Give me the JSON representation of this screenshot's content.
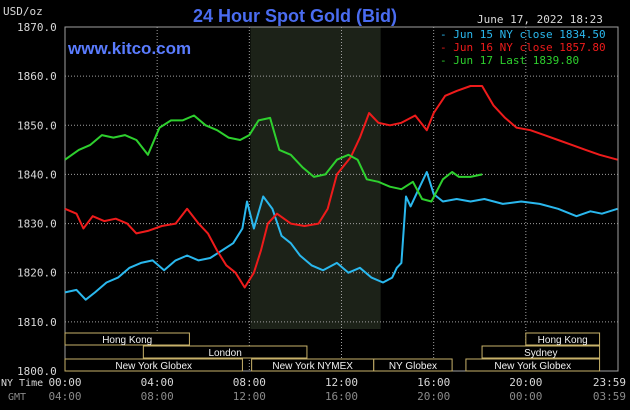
{
  "chart_data": {
    "type": "line",
    "title": "24 Hour Spot Gold (Bid)",
    "ylabel": "USD/oz",
    "watermark": "www.kitco.com",
    "timestamp": "June 17, 2022 18:23",
    "ylim": [
      1800,
      1870
    ],
    "yticks": [
      "1870.0",
      "1860.0",
      "1850.0",
      "1840.0",
      "1830.0",
      "1820.0",
      "1810.0",
      "1800.0"
    ],
    "xlim": [
      0,
      24
    ],
    "xticks": [
      {
        "ny": "00:00",
        "gmt": "04:00"
      },
      {
        "ny": "04:00",
        "gmt": "08:00"
      },
      {
        "ny": "08:00",
        "gmt": "12:00"
      },
      {
        "ny": "12:00",
        "gmt": "16:00"
      },
      {
        "ny": "16:00",
        "gmt": "20:00"
      },
      {
        "ny": "20:00",
        "gmt": "00:00"
      },
      {
        "ny": "23:59",
        "gmt": "03:59"
      }
    ],
    "x_row_labels": {
      "ny": "NY Time",
      "gmt": "GMT"
    },
    "grid": true,
    "legend_position": "top-right",
    "highlight_hours": [
      8.05,
      13.7
    ],
    "colors": {
      "background": "#000000",
      "title": "#4a6cf0",
      "watermark": "#5a7cff",
      "grid": "#a0a0a0",
      "axis_text": "#d8d8d8",
      "highlight": "#1c2218",
      "session_box_fill": "#000000",
      "session_box_border": "#c8b26a",
      "session_text": "#f2f2f2"
    },
    "sessions": {
      "row1": [
        {
          "label": "Hong Kong",
          "start": 0,
          "end": 5.4
        },
        {
          "label": "Hong Kong",
          "start": 20.0,
          "end": 23.2
        }
      ],
      "row2": [
        {
          "label": "London",
          "start": 3.4,
          "end": 10.5
        },
        {
          "label": "Sydney",
          "start": 18.1,
          "end": 23.2
        }
      ],
      "row3": [
        {
          "label": "New York Globex",
          "start": 0,
          "end": 7.7
        },
        {
          "label": "New York NYMEX",
          "start": 8.1,
          "end": 13.4
        },
        {
          "label": "NY Globex",
          "start": 13.4,
          "end": 16.8
        },
        {
          "label": "New York Globex",
          "start": 17.4,
          "end": 23.2
        }
      ]
    },
    "series": [
      {
        "name": "Jun 15 NY close 1834.50",
        "color": "#2ab8ee",
        "points": [
          [
            0,
            1816
          ],
          [
            0.5,
            1816.5
          ],
          [
            0.9,
            1814.5
          ],
          [
            1.3,
            1816
          ],
          [
            1.8,
            1818
          ],
          [
            2.3,
            1819
          ],
          [
            2.8,
            1821
          ],
          [
            3.3,
            1822
          ],
          [
            3.8,
            1822.5
          ],
          [
            4.3,
            1820.5
          ],
          [
            4.8,
            1822.5
          ],
          [
            5.3,
            1823.5
          ],
          [
            5.8,
            1822.5
          ],
          [
            6.3,
            1823
          ],
          [
            6.8,
            1824.5
          ],
          [
            7.3,
            1826
          ],
          [
            7.7,
            1829
          ],
          [
            7.9,
            1834.5
          ],
          [
            8.2,
            1829
          ],
          [
            8.6,
            1835.5
          ],
          [
            9.0,
            1833
          ],
          [
            9.4,
            1827.5
          ],
          [
            9.8,
            1826
          ],
          [
            10.2,
            1823.5
          ],
          [
            10.7,
            1821.5
          ],
          [
            11.2,
            1820.5
          ],
          [
            11.8,
            1822
          ],
          [
            12.3,
            1820
          ],
          [
            12.8,
            1821
          ],
          [
            13.3,
            1819
          ],
          [
            13.8,
            1818
          ],
          [
            14.2,
            1819
          ],
          [
            14.4,
            1821
          ],
          [
            14.6,
            1822
          ],
          [
            14.8,
            1835.5
          ],
          [
            15.0,
            1833.5
          ],
          [
            15.4,
            1837.5
          ],
          [
            15.7,
            1840.5
          ],
          [
            16.0,
            1836
          ],
          [
            16.4,
            1834.5
          ],
          [
            17.0,
            1835
          ],
          [
            17.6,
            1834.5
          ],
          [
            18.2,
            1835
          ],
          [
            19.0,
            1834
          ],
          [
            19.8,
            1834.5
          ],
          [
            20.6,
            1834
          ],
          [
            21.4,
            1833
          ],
          [
            22.2,
            1831.5
          ],
          [
            22.8,
            1832.5
          ],
          [
            23.3,
            1832
          ],
          [
            23.98,
            1833
          ]
        ]
      },
      {
        "name": "Jun 16 NY close 1857.80",
        "color": "#ee1b1b",
        "points": [
          [
            0,
            1833
          ],
          [
            0.5,
            1832
          ],
          [
            0.8,
            1829
          ],
          [
            1.2,
            1831.5
          ],
          [
            1.7,
            1830.5
          ],
          [
            2.2,
            1831
          ],
          [
            2.7,
            1830
          ],
          [
            3.1,
            1828
          ],
          [
            3.6,
            1828.5
          ],
          [
            4.2,
            1829.5
          ],
          [
            4.8,
            1830
          ],
          [
            5.3,
            1833
          ],
          [
            5.8,
            1830
          ],
          [
            6.2,
            1828
          ],
          [
            6.6,
            1824.5
          ],
          [
            7.0,
            1821.5
          ],
          [
            7.4,
            1820
          ],
          [
            7.8,
            1817
          ],
          [
            8.2,
            1820
          ],
          [
            8.5,
            1824.5
          ],
          [
            8.8,
            1830
          ],
          [
            9.2,
            1832
          ],
          [
            9.8,
            1830
          ],
          [
            10.4,
            1829.5
          ],
          [
            11.0,
            1830
          ],
          [
            11.4,
            1833
          ],
          [
            11.8,
            1840
          ],
          [
            12.4,
            1843.5
          ],
          [
            12.8,
            1847.5
          ],
          [
            13.2,
            1852.5
          ],
          [
            13.6,
            1850.5
          ],
          [
            14.1,
            1850
          ],
          [
            14.6,
            1850.5
          ],
          [
            15.2,
            1852
          ],
          [
            15.7,
            1849
          ],
          [
            16.0,
            1852.5
          ],
          [
            16.5,
            1856
          ],
          [
            17.0,
            1857
          ],
          [
            17.6,
            1858
          ],
          [
            18.1,
            1858
          ],
          [
            18.6,
            1854
          ],
          [
            19.1,
            1851.5
          ],
          [
            19.6,
            1849.5
          ],
          [
            20.2,
            1849
          ],
          [
            20.8,
            1848
          ],
          [
            21.4,
            1847
          ],
          [
            22.0,
            1846
          ],
          [
            22.6,
            1845
          ],
          [
            23.2,
            1844
          ],
          [
            23.98,
            1843
          ]
        ]
      },
      {
        "name": "Jun 17 Last 1839.80",
        "color": "#2ed02e",
        "points": [
          [
            0,
            1843
          ],
          [
            0.6,
            1845
          ],
          [
            1.1,
            1846
          ],
          [
            1.6,
            1848
          ],
          [
            2.1,
            1847.5
          ],
          [
            2.6,
            1848
          ],
          [
            3.1,
            1847
          ],
          [
            3.6,
            1844
          ],
          [
            4.1,
            1849.5
          ],
          [
            4.6,
            1851
          ],
          [
            5.1,
            1851
          ],
          [
            5.6,
            1852
          ],
          [
            6.1,
            1850
          ],
          [
            6.6,
            1849
          ],
          [
            7.1,
            1847.5
          ],
          [
            7.6,
            1847
          ],
          [
            8.0,
            1848
          ],
          [
            8.4,
            1851
          ],
          [
            8.9,
            1851.5
          ],
          [
            9.3,
            1845
          ],
          [
            9.8,
            1844
          ],
          [
            10.3,
            1841.5
          ],
          [
            10.8,
            1839.5
          ],
          [
            11.3,
            1840
          ],
          [
            11.8,
            1843
          ],
          [
            12.3,
            1844
          ],
          [
            12.7,
            1843
          ],
          [
            13.1,
            1839
          ],
          [
            13.6,
            1838.5
          ],
          [
            14.1,
            1837.5
          ],
          [
            14.6,
            1837
          ],
          [
            15.1,
            1838.5
          ],
          [
            15.5,
            1835
          ],
          [
            15.9,
            1834.5
          ],
          [
            16.4,
            1839
          ],
          [
            16.8,
            1840.5
          ],
          [
            17.1,
            1839.5
          ],
          [
            17.6,
            1839.5
          ],
          [
            18.1,
            1840
          ]
        ]
      }
    ]
  }
}
